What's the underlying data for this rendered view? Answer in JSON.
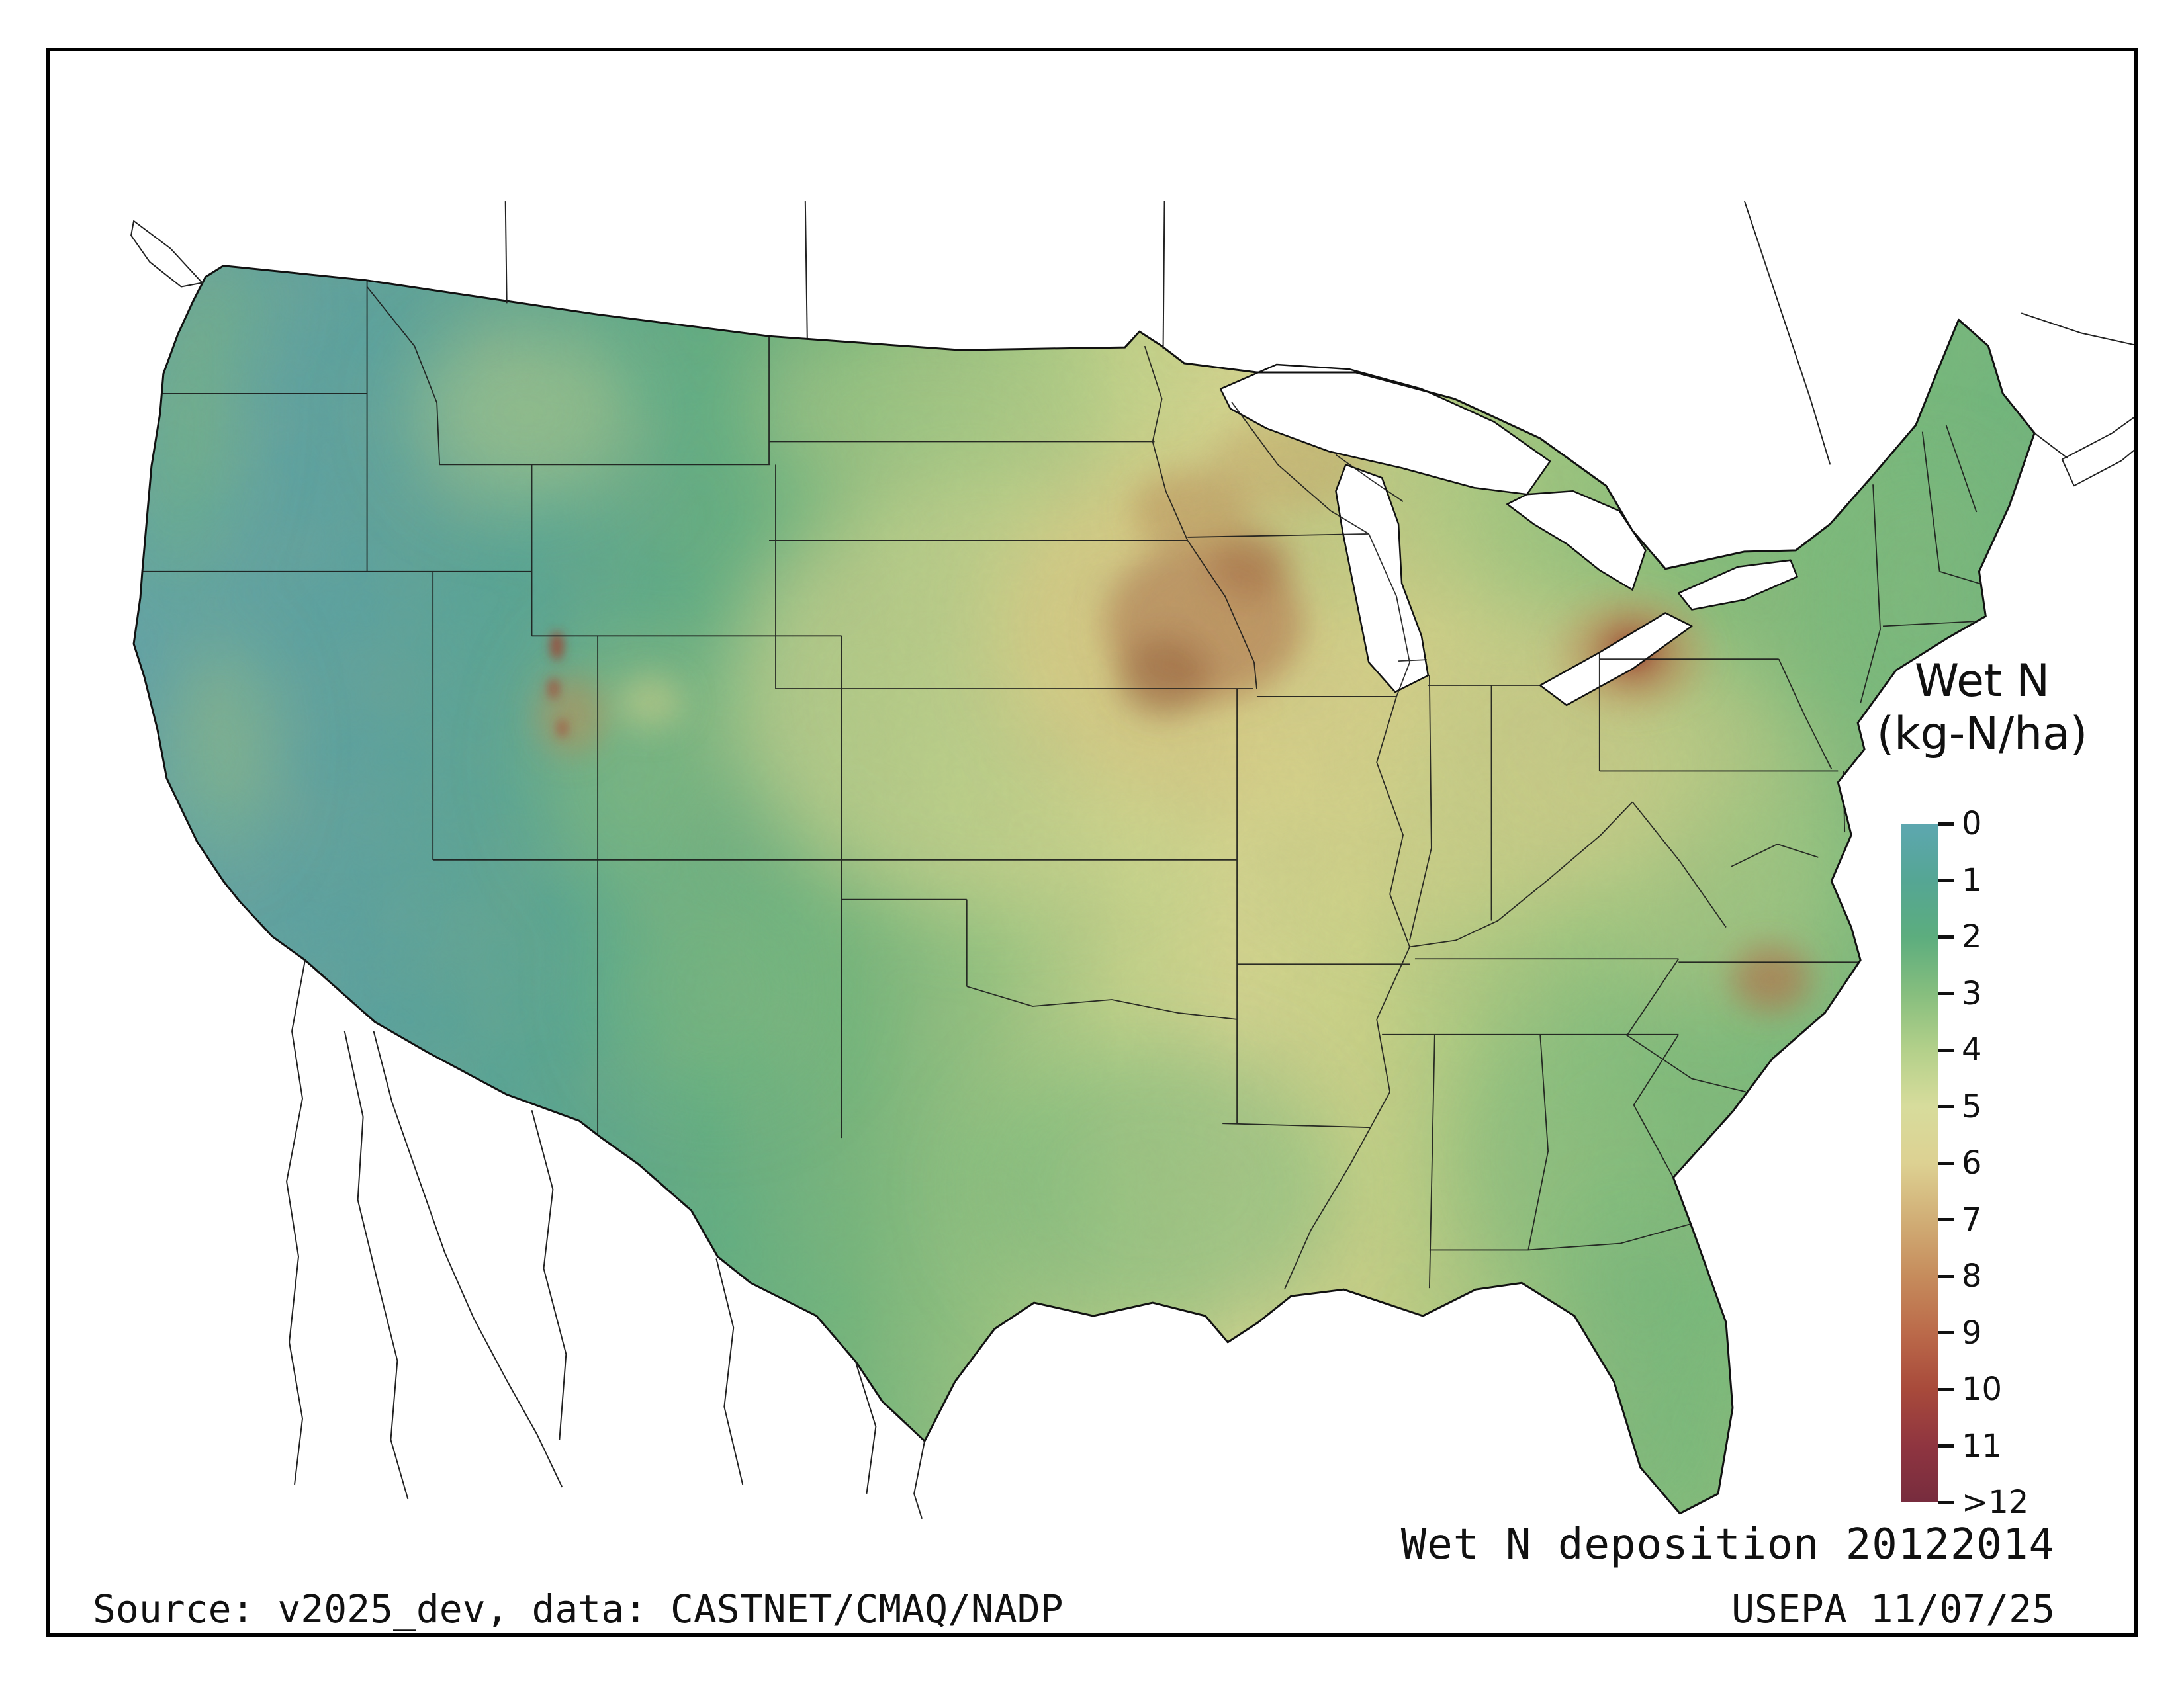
{
  "page": {
    "background": "#ffffff",
    "frame_color": "#000000"
  },
  "legend": {
    "title_line1": "Wet N",
    "title_line2": "(kg-N/ha)",
    "ticks": [
      "0",
      "1",
      "2",
      "3",
      "4",
      "5",
      "6",
      "7",
      "8",
      "9",
      "10",
      "11",
      ">12"
    ],
    "colors": [
      "#5da7b0",
      "#55a694",
      "#5cad7e",
      "#86be7e",
      "#b3d08a",
      "#d7dc9c",
      "#ddd192",
      "#d1ae76",
      "#c68c5c",
      "#bb6a4a",
      "#a84a3b",
      "#8f3540",
      "#772c3e"
    ]
  },
  "footer": {
    "caption": "Wet N deposition 20122014",
    "source": "Source: v2025_dev, data: CASTNET/CMAQ/NADP",
    "agency": "USEPA 11/07/25"
  },
  "map_data": {
    "type": "choropleth-raster",
    "region": "Conterminous United States (Canada and Mexico shown unshaded with boundaries)",
    "variable": "Wet nitrogen deposition",
    "units": "kg-N/ha",
    "period_label": "20122014",
    "scale": {
      "min": 0,
      "max": 12,
      "open_ended_max": true
    },
    "patterns": [
      {
        "area": "Pacific Northwest coast, Great Basin, California, desert Southwest",
        "value_range": "0-2"
      },
      {
        "area": "Rocky Mountains / Sierra Nevada / Cascades local highs",
        "value_range": "3-6"
      },
      {
        "area": "Wasatch Front, Utah (isolated pixels)",
        "value_range": "10->12"
      },
      {
        "area": "Northern and central Great Plains",
        "value_range": "3-5"
      },
      {
        "area": "Iowa / southern Minnesota Corn Belt (regional maximum)",
        "value_range": "6-9"
      },
      {
        "area": "Illinois, Indiana, Ohio Valley",
        "value_range": "5-7"
      },
      {
        "area": "Lake Erie shoreline spot (NE Ohio / NW Pennsylvania)",
        "value_range": "9-11"
      },
      {
        "area": "Eastern North Carolina spot",
        "value_range": "7-9"
      },
      {
        "area": "Southeast, Gulf Coast, Florida",
        "value_range": "3-5"
      },
      {
        "area": "Northeast and New England",
        "value_range": "3-6"
      }
    ]
  }
}
